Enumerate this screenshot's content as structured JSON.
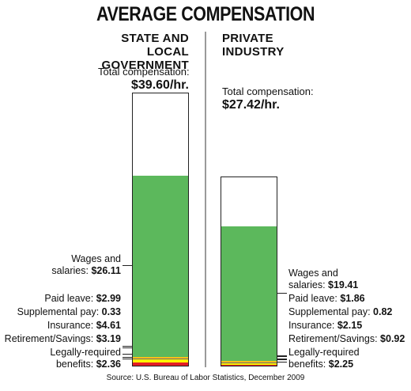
{
  "title": "AVERAGE COMPENSATION",
  "source": "Source: U.S. Bureau of Labor Statistics, December 2009",
  "colors": {
    "wages": "#5cb85c",
    "paid_leave": "#fbbf1a",
    "supplemental": "#6b6b6b",
    "insurance": "#fff200",
    "retirement": "#e31e24",
    "legal": "#7ec8e3"
  },
  "chart_data": {
    "type": "bar",
    "stacked": true,
    "unit": "$/hr",
    "columns": [
      {
        "key": "state",
        "heading_lines": [
          "STATE AND LOCAL",
          "GOVERNMENT"
        ],
        "total_label": "Total compensation:",
        "total_value": "$39.60/hr.",
        "total": 39.6,
        "segments": [
          {
            "key": "legal",
            "label_lines": [
              "Legally-required",
              "benefits:"
            ],
            "value_text": "$2.36",
            "value": 2.36
          },
          {
            "key": "retirement",
            "label_lines": [
              "Retirement/Savings:"
            ],
            "value_text": "$3.19",
            "value": 3.19
          },
          {
            "key": "insurance",
            "label_lines": [
              "Insurance:"
            ],
            "value_text": "$4.61",
            "value": 4.61
          },
          {
            "key": "supplemental",
            "label_lines": [
              "Supplemental pay:"
            ],
            "value_text": "0.33",
            "value": 0.33
          },
          {
            "key": "paid_leave",
            "label_lines": [
              "Paid leave:"
            ],
            "value_text": "$2.99",
            "value": 2.99
          },
          {
            "key": "wages",
            "label_lines": [
              "Wages and",
              "salaries:"
            ],
            "value_text": "$26.11",
            "value": 26.11
          }
        ]
      },
      {
        "key": "private",
        "heading_lines": [
          "PRIVATE",
          "INDUSTRY"
        ],
        "total_label": "Total compensation:",
        "total_value": "$27.42/hr.",
        "total": 27.42,
        "segments": [
          {
            "key": "legal",
            "label_lines": [
              "Legally-required",
              "benefits:"
            ],
            "value_text": "$2.25",
            "value": 2.25
          },
          {
            "key": "retirement",
            "label_lines": [
              "Retirement/Savings:"
            ],
            "value_text": "$0.92",
            "value": 0.92
          },
          {
            "key": "insurance",
            "label_lines": [
              "Insurance:"
            ],
            "value_text": "$2.15",
            "value": 2.15
          },
          {
            "key": "supplemental",
            "label_lines": [
              "Supplemental pay:"
            ],
            "value_text": "0.82",
            "value": 0.82
          },
          {
            "key": "paid_leave",
            "label_lines": [
              "Paid leave:"
            ],
            "value_text": "$1.86",
            "value": 1.86
          },
          {
            "key": "wages",
            "label_lines": [
              "Wages and",
              "salaries:"
            ],
            "value_text": "$19.41",
            "value": 19.41
          }
        ]
      }
    ]
  }
}
